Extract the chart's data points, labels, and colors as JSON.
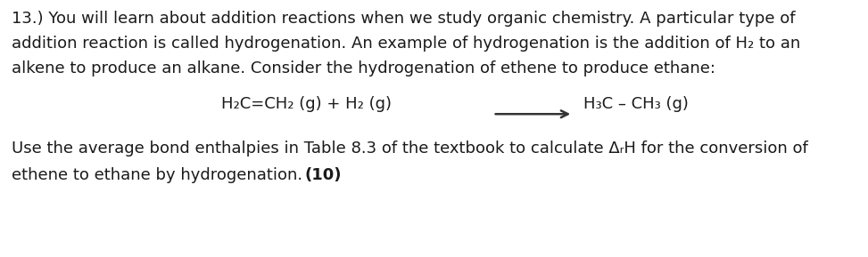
{
  "background_color": "#ffffff",
  "text_color": "#1a1a1a",
  "font_size": 13.0,
  "fig_width": 9.73,
  "fig_height": 2.89,
  "line1": "13.) You will learn about addition reactions when we study organic chemistry. A particular type of",
  "line2a": "addition reaction is called hydrogenation. An example of hydrogenation is the addition of H",
  "line2_sub": "₂",
  "line2b": " to an",
  "line3": "alkene to produce an alkane. Consider the hydrogenation of ethene to produce ethane:",
  "eq_left": "H₂C=CH₂ (g) + H₂ (g)",
  "eq_right": "H₃C – CH₃ (g)",
  "line4a": "Use the average bond enthalpies in Table 8.3 of the textbook to calculate Δ",
  "line4_sub": "r",
  "line4b": "H for the conversion of",
  "line5a": "ethene to ethane by hydrogenation. ",
  "line5b": "(10)"
}
